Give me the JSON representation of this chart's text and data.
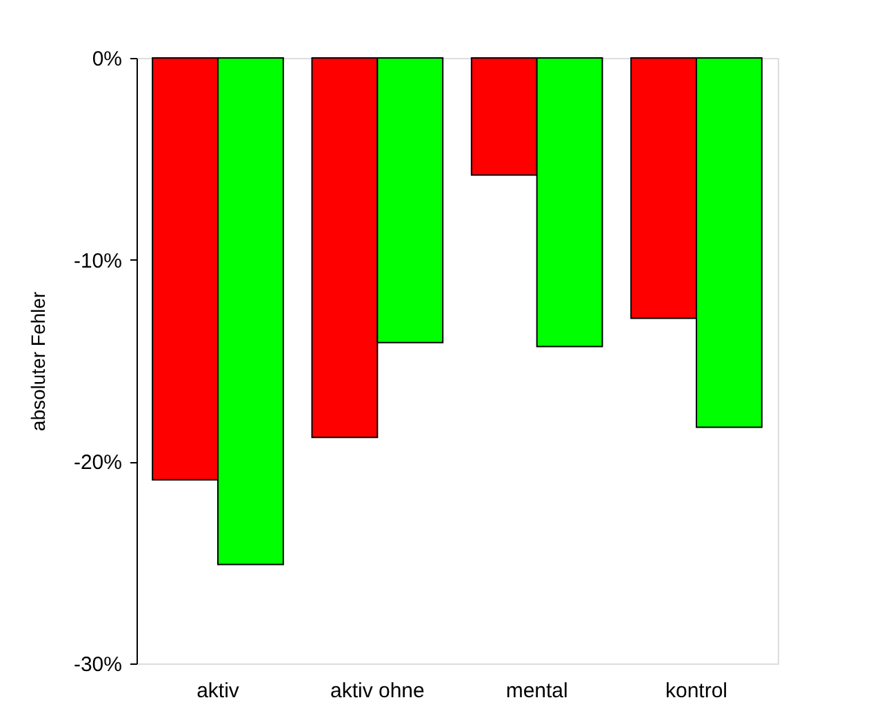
{
  "chart_data": {
    "type": "bar",
    "ylabel": "absoluter Fehler",
    "categories": [
      "aktiv",
      "aktiv ohne",
      "mental",
      "kontrol"
    ],
    "series": [
      {
        "color": "#ff0000",
        "values": [
          -20.9,
          -18.8,
          -5.8,
          -12.9
        ]
      },
      {
        "color": "#00ff00",
        "values": [
          -25.1,
          -14.1,
          -14.3,
          -18.3
        ]
      }
    ],
    "ylim": [
      -30,
      0
    ],
    "yticks": [
      {
        "value": 0,
        "label": "0%"
      },
      {
        "value": -10,
        "label": "-10%"
      },
      {
        "value": -20,
        "label": "-20%"
      },
      {
        "value": -30,
        "label": "-30%"
      }
    ],
    "grid": false,
    "legend": false
  }
}
